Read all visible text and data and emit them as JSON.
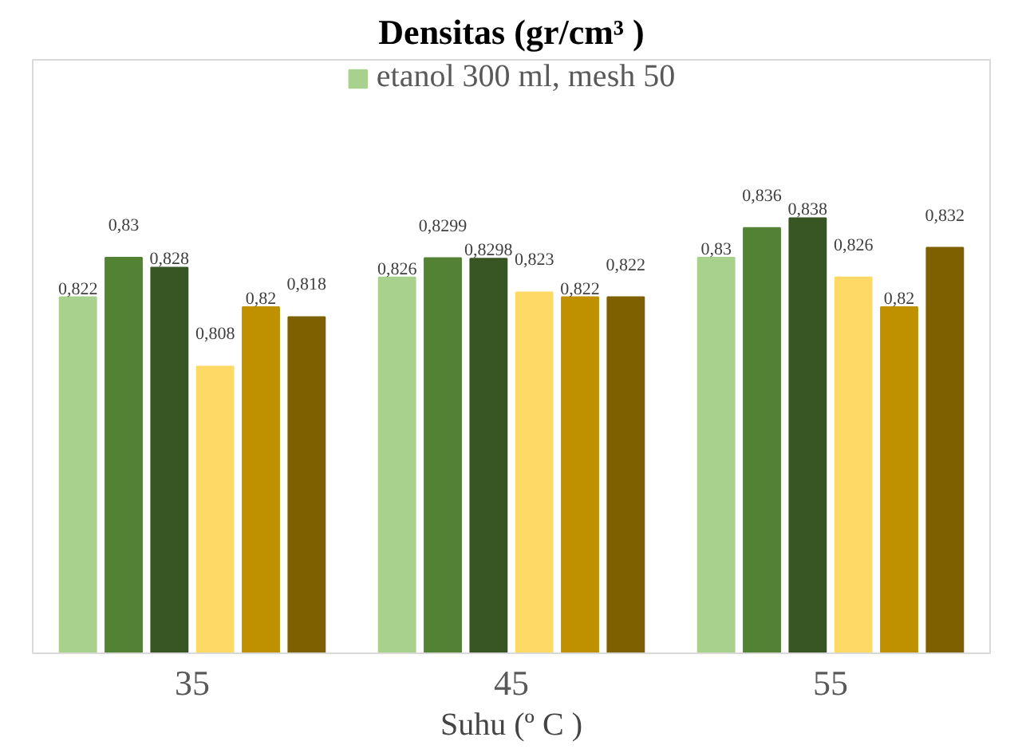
{
  "chart_data": {
    "type": "bar",
    "title": "Densitas (gr/cm³ )",
    "xlabel": "Suhu (º C )",
    "categories": [
      "35",
      "45",
      "55"
    ],
    "ylim": [
      0.75,
      0.87
    ],
    "tick_labels": "x",
    "legend": "top",
    "grid": false,
    "series": [
      {
        "name": "etanol 300 ml, mesh 50",
        "color": "#a9d18e",
        "values": [
          0.822,
          0.826,
          0.83
        ],
        "value_labels": [
          "0,822",
          "0,826",
          "0,83"
        ]
      },
      {
        "color": "#548235",
        "values": [
          0.83,
          0.8299,
          0.836
        ],
        "value_labels": [
          "0,83",
          "0,8299",
          "0,836"
        ]
      },
      {
        "color": "#375623",
        "values": [
          0.828,
          0.8298,
          0.838
        ],
        "value_labels": [
          "0,828",
          "0,8298",
          "0,838"
        ]
      },
      {
        "color": "#ffd966",
        "values": [
          0.808,
          0.823,
          0.826
        ],
        "value_labels": [
          "0,808",
          "0,823",
          "0,826"
        ]
      },
      {
        "color": "#bf9000",
        "values": [
          0.82,
          0.822,
          0.82
        ],
        "value_labels": [
          "0,82",
          "0,822",
          "0,82"
        ]
      },
      {
        "color": "#7f6000",
        "values": [
          0.818,
          0.822,
          0.832
        ],
        "value_labels": [
          "0,818",
          "0,822",
          "0,832"
        ]
      }
    ]
  }
}
